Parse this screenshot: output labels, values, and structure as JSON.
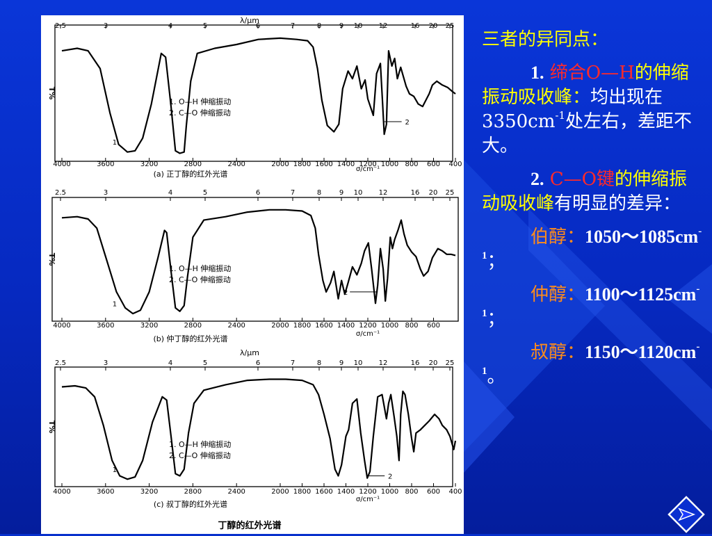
{
  "slide": {
    "background_color": "#0730cc",
    "heading_color": "#ffff00"
  },
  "figure": {
    "main_caption": "丁醇的红外光谱",
    "charts": [
      {
        "top_axis_title": "λ/μm",
        "top_ticks": [
          {
            "label": "2.5"
          },
          {
            "label": "3"
          },
          {
            "label": "4"
          },
          {
            "label": "5"
          },
          {
            "label": "6"
          },
          {
            "label": "7"
          },
          {
            "label": "8"
          },
          {
            "label": "9"
          },
          {
            "label": "10"
          },
          {
            "label": "12"
          },
          {
            "label": "16"
          },
          {
            "label": "20"
          },
          {
            "label": "25"
          }
        ],
        "bottom_ticks": [
          {
            "label": "4000"
          },
          {
            "label": "3600"
          },
          {
            "label": "3200"
          },
          {
            "label": "2800"
          },
          {
            "label": "2400"
          },
          {
            "label": "2000"
          },
          {
            "label": "1800"
          },
          {
            "label": "1600"
          },
          {
            "label": "1400"
          },
          {
            "label": "1200"
          },
          {
            "label": "1000"
          },
          {
            "label": "800"
          },
          {
            "label": "600"
          },
          {
            "label": "400"
          }
        ],
        "ylabel": "T%",
        "unit_label": "σ/cm⁻¹",
        "caption": "(a) 正丁醇的红外光谱",
        "legend": [
          {
            "label": "1. O—H 伸缩振动"
          },
          {
            "label": "2. C—O 伸缩振动"
          }
        ],
        "marker_labels": [
          {
            "text": "1"
          },
          {
            "text": "2"
          }
        ],
        "trace": [
          [
            4000,
            84
          ],
          [
            3860,
            86
          ],
          [
            3760,
            84
          ],
          [
            3650,
            70
          ],
          [
            3560,
            35
          ],
          [
            3480,
            10
          ],
          [
            3400,
            4
          ],
          [
            3330,
            5
          ],
          [
            3260,
            15
          ],
          [
            3180,
            42
          ],
          [
            3090,
            82
          ],
          [
            3050,
            79
          ],
          [
            3000,
            40
          ],
          [
            2960,
            5
          ],
          [
            2920,
            3
          ],
          [
            2880,
            4
          ],
          [
            2860,
            25
          ],
          [
            2820,
            60
          ],
          [
            2760,
            82
          ],
          [
            2600,
            86
          ],
          [
            2400,
            89
          ],
          [
            2200,
            93
          ],
          [
            2000,
            94
          ],
          [
            1850,
            93
          ],
          [
            1750,
            92
          ],
          [
            1700,
            87
          ],
          [
            1660,
            70
          ],
          [
            1620,
            45
          ],
          [
            1570,
            25
          ],
          [
            1510,
            20
          ],
          [
            1465,
            26
          ],
          [
            1430,
            54
          ],
          [
            1380,
            68
          ],
          [
            1340,
            62
          ],
          [
            1300,
            72
          ],
          [
            1260,
            54
          ],
          [
            1225,
            61
          ],
          [
            1200,
            46
          ],
          [
            1150,
            33
          ],
          [
            1120,
            66
          ],
          [
            1085,
            74
          ],
          [
            1065,
            42
          ],
          [
            1050,
            18
          ],
          [
            1030,
            26
          ],
          [
            1010,
            84
          ],
          [
            980,
            72
          ],
          [
            955,
            78
          ],
          [
            930,
            62
          ],
          [
            900,
            71
          ],
          [
            850,
            56
          ],
          [
            820,
            50
          ],
          [
            780,
            48
          ],
          [
            740,
            42
          ],
          [
            700,
            40
          ],
          [
            640,
            50
          ],
          [
            610,
            57
          ],
          [
            570,
            60
          ],
          [
            520,
            57
          ],
          [
            470,
            55
          ],
          [
            430,
            52
          ],
          [
            400,
            50
          ]
        ]
      },
      {
        "top_ticks": [
          {
            "label": "2.5"
          },
          {
            "label": "3"
          },
          {
            "label": "4"
          },
          {
            "label": "5"
          },
          {
            "label": "6"
          },
          {
            "label": "7"
          },
          {
            "label": "8"
          },
          {
            "label": "9"
          },
          {
            "label": "10"
          },
          {
            "label": "12"
          },
          {
            "label": "16"
          },
          {
            "label": "20"
          },
          {
            "label": "25"
          }
        ],
        "bottom_ticks": [
          {
            "label": "4000"
          },
          {
            "label": "3600"
          },
          {
            "label": "3200"
          },
          {
            "label": "2800"
          },
          {
            "label": "2400"
          },
          {
            "label": "2000"
          },
          {
            "label": "1800"
          },
          {
            "label": "1600"
          },
          {
            "label": "1400"
          },
          {
            "label": "1200"
          },
          {
            "label": "1000"
          },
          {
            "label": "800"
          },
          {
            "label": "600"
          }
        ],
        "ylabel": "T%",
        "unit_label": "σ/cm⁻¹",
        "caption": "(b) 仲丁醇的红外光谱",
        "bottom_axis_title": "λ/μm",
        "legend": [
          {
            "label": "1. O—H 伸缩振动"
          },
          {
            "label": "2. C—O 伸缩振动"
          }
        ],
        "marker_labels": [
          {
            "text": "1"
          },
          {
            "text": "2"
          }
        ],
        "trace": [
          [
            4000,
            87
          ],
          [
            3860,
            88
          ],
          [
            3760,
            86
          ],
          [
            3680,
            78
          ],
          [
            3590,
            50
          ],
          [
            3500,
            22
          ],
          [
            3420,
            8
          ],
          [
            3350,
            3
          ],
          [
            3280,
            6
          ],
          [
            3200,
            22
          ],
          [
            3120,
            52
          ],
          [
            3060,
            76
          ],
          [
            3040,
            74
          ],
          [
            3000,
            40
          ],
          [
            2960,
            8
          ],
          [
            2920,
            5
          ],
          [
            2880,
            10
          ],
          [
            2850,
            35
          ],
          [
            2800,
            70
          ],
          [
            2700,
            85
          ],
          [
            2500,
            88
          ],
          [
            2300,
            92
          ],
          [
            2100,
            94
          ],
          [
            1950,
            94
          ],
          [
            1800,
            93
          ],
          [
            1720,
            89
          ],
          [
            1680,
            78
          ],
          [
            1650,
            55
          ],
          [
            1610,
            32
          ],
          [
            1580,
            22
          ],
          [
            1540,
            30
          ],
          [
            1510,
            40
          ],
          [
            1470,
            16
          ],
          [
            1440,
            32
          ],
          [
            1410,
            20
          ],
          [
            1380,
            30
          ],
          [
            1340,
            44
          ],
          [
            1300,
            37
          ],
          [
            1260,
            47
          ],
          [
            1230,
            58
          ],
          [
            1195,
            65
          ],
          [
            1165,
            42
          ],
          [
            1130,
            12
          ],
          [
            1110,
            28
          ],
          [
            1085,
            60
          ],
          [
            1060,
            42
          ],
          [
            1040,
            14
          ],
          [
            1020,
            34
          ],
          [
            995,
            70
          ],
          [
            975,
            60
          ],
          [
            955,
            68
          ],
          [
            925,
            76
          ],
          [
            895,
            85
          ],
          [
            870,
            73
          ],
          [
            840,
            63
          ],
          [
            800,
            57
          ],
          [
            760,
            53
          ],
          [
            720,
            42
          ],
          [
            690,
            36
          ],
          [
            650,
            40
          ],
          [
            610,
            52
          ],
          [
            560,
            60
          ],
          [
            520,
            58
          ],
          [
            480,
            55
          ],
          [
            440,
            55
          ],
          [
            400,
            54
          ]
        ]
      },
      {
        "top_ticks": [
          {
            "label": "2.5"
          },
          {
            "label": "3"
          },
          {
            "label": "4"
          },
          {
            "label": "5"
          },
          {
            "label": "6"
          },
          {
            "label": "7"
          },
          {
            "label": "8"
          },
          {
            "label": "9"
          },
          {
            "label": "10"
          },
          {
            "label": "12"
          },
          {
            "label": "16"
          },
          {
            "label": "20"
          },
          {
            "label": "25"
          }
        ],
        "bottom_ticks": [
          {
            "label": "4000"
          },
          {
            "label": "3600"
          },
          {
            "label": "3200"
          },
          {
            "label": "2800"
          },
          {
            "label": "2400"
          },
          {
            "label": "2000"
          },
          {
            "label": "1800"
          },
          {
            "label": "1600"
          },
          {
            "label": "1400"
          },
          {
            "label": "1200"
          },
          {
            "label": "1000"
          },
          {
            "label": "800"
          },
          {
            "label": "600"
          },
          {
            "label": "400"
          }
        ],
        "ylabel": "T%",
        "unit_label": "σ/cm⁻¹",
        "caption": "(c) 叔丁醇的红外光谱",
        "legend": [
          {
            "label": "1. O—H 伸缩振动"
          },
          {
            "label": "2. C—O 伸缩振动"
          }
        ],
        "marker_labels": [
          {
            "text": "1"
          },
          {
            "text": "2"
          }
        ],
        "trace": [
          [
            4000,
            87
          ],
          [
            3880,
            88
          ],
          [
            3780,
            86
          ],
          [
            3700,
            78
          ],
          [
            3620,
            52
          ],
          [
            3540,
            20
          ],
          [
            3470,
            6
          ],
          [
            3400,
            3
          ],
          [
            3330,
            5
          ],
          [
            3260,
            20
          ],
          [
            3170,
            55
          ],
          [
            3080,
            78
          ],
          [
            3040,
            75
          ],
          [
            3000,
            42
          ],
          [
            2960,
            8
          ],
          [
            2920,
            6
          ],
          [
            2880,
            12
          ],
          [
            2840,
            45
          ],
          [
            2790,
            72
          ],
          [
            2700,
            84
          ],
          [
            2500,
            89
          ],
          [
            2300,
            93
          ],
          [
            2100,
            94
          ],
          [
            1950,
            94
          ],
          [
            1800,
            93
          ],
          [
            1700,
            89
          ],
          [
            1650,
            80
          ],
          [
            1600,
            62
          ],
          [
            1545,
            40
          ],
          [
            1500,
            12
          ],
          [
            1470,
            6
          ],
          [
            1440,
            16
          ],
          [
            1400,
            42
          ],
          [
            1375,
            48
          ],
          [
            1340,
            72
          ],
          [
            1300,
            76
          ],
          [
            1265,
            45
          ],
          [
            1230,
            20
          ],
          [
            1205,
            4
          ],
          [
            1180,
            10
          ],
          [
            1150,
            42
          ],
          [
            1110,
            78
          ],
          [
            1070,
            80
          ],
          [
            1030,
            58
          ],
          [
            1010,
            72
          ],
          [
            990,
            80
          ],
          [
            960,
            60
          ],
          [
            935,
            42
          ],
          [
            915,
            20
          ],
          [
            900,
            62
          ],
          [
            880,
            83
          ],
          [
            860,
            80
          ],
          [
            830,
            62
          ],
          [
            800,
            40
          ],
          [
            780,
            28
          ],
          [
            760,
            45
          ],
          [
            720,
            48
          ],
          [
            680,
            52
          ],
          [
            640,
            56
          ],
          [
            590,
            62
          ],
          [
            550,
            58
          ],
          [
            520,
            52
          ],
          [
            480,
            48
          ],
          [
            450,
            42
          ],
          [
            430,
            35
          ],
          [
            415,
            30
          ],
          [
            400,
            38
          ]
        ]
      }
    ]
  },
  "notes": {
    "heading": "三者的异同点：",
    "point1": {
      "num": "1.",
      "term": "缔合O—H",
      "desc": "的伸缩振动吸收峰：",
      "body": "均出现在3350cm",
      "sup": "-1",
      "tail": "处左右，差距不大。"
    },
    "point2": {
      "num": "2.",
      "term": "C—O键",
      "desc": "的伸缩振动吸收峰",
      "body": "有明显的差异："
    },
    "primary": {
      "label": "伯醇：",
      "value": "1050～1085cm",
      "sup": "-1",
      "end": "；"
    },
    "secondary": {
      "label": "仲醇：",
      "value": "1100～1125cm",
      "sup": "-1",
      "end": "；"
    },
    "tertiary": {
      "label": "叔醇：",
      "value": "1150～1120cm",
      "sup": "-1",
      "end": "。"
    }
  },
  "nav": {
    "icon": "arrow-right-icon",
    "border_color": "#ffffff",
    "arrow_color": "#1e3cff"
  }
}
